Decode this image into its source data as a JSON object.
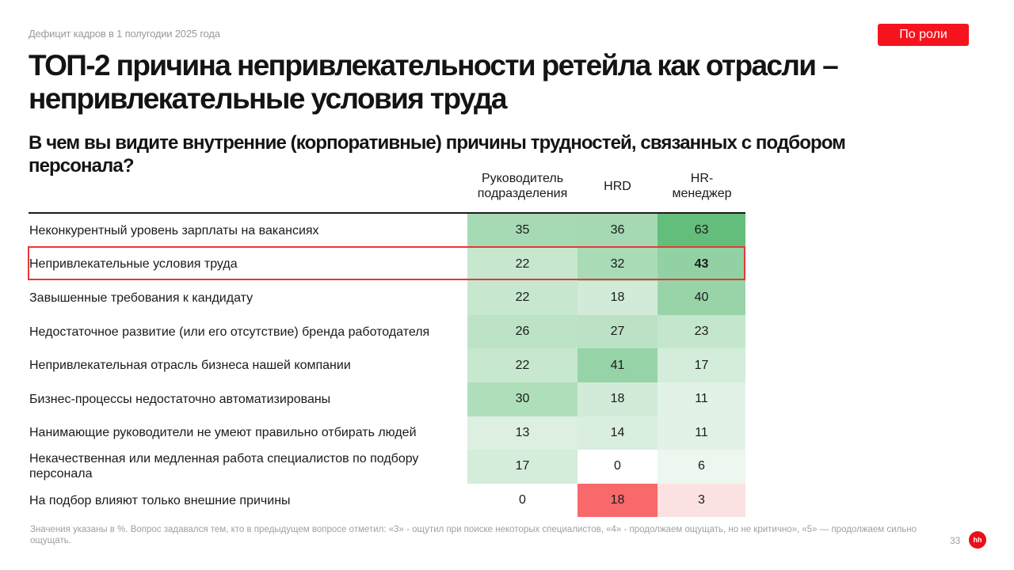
{
  "header": {
    "kicker": "Дефицит кадров в 1 полугодии 2025 года",
    "tag_button": "По роли",
    "title": "ТОП-2 причина непривлекательности ретейла как отрасли – непривлекательные условия труда",
    "question": "В чем вы видите внутренние (корпоративные) причины трудностей, связанных с подбором персонала?"
  },
  "table": {
    "columns": [
      "Руководитель подразделения",
      "HRD",
      "HR-менеджер"
    ],
    "highlighted_row": 1,
    "rows": [
      {
        "label": "Неконкурентный уровень зарплаты на вакансиях",
        "values": [
          "35",
          "36",
          "63"
        ],
        "colors": [
          "#a6dab4",
          "#a5d9b3",
          "#63be7b"
        ]
      },
      {
        "label": "Непривлекательные условия труда",
        "values": [
          "22",
          "32",
          "43"
        ],
        "colors": [
          "#c7e7cf",
          "#a9dbb6",
          "#92d1a3"
        ],
        "bold": [
          false,
          false,
          true
        ]
      },
      {
        "label": "Завышенные требования к кандидату",
        "values": [
          "22",
          "18",
          "40"
        ],
        "colors": [
          "#c7e7cf",
          "#d1ebd8",
          "#99d4a9"
        ]
      },
      {
        "label": "Недостаточное развитие (или его отсутствие) бренда работодателя",
        "values": [
          "26",
          "27",
          "23"
        ],
        "colors": [
          "#bde3c6",
          "#bbe2c5",
          "#c4e6cd"
        ]
      },
      {
        "label": "Непривлекательная отрасль бизнеса нашей компании",
        "values": [
          "22",
          "41",
          "17"
        ],
        "colors": [
          "#c7e7cf",
          "#96d3a7",
          "#d4ecda"
        ]
      },
      {
        "label": "Бизнес-процессы недостаточно автоматизированы",
        "values": [
          "30",
          "18",
          "11"
        ],
        "colors": [
          "#afdebb",
          "#d1ebd8",
          "#e2f2e6"
        ]
      },
      {
        "label": "Нанимающие руководители не умеют правильно отбирать людей",
        "values": [
          "13",
          "14",
          "11"
        ],
        "colors": [
          "#dcefe1",
          "#daeedf",
          "#e2f2e6"
        ]
      },
      {
        "label": "Некачественная или медленная работа специалистов по подбору персонала",
        "values": [
          "17",
          "0",
          "6"
        ],
        "colors": [
          "#d4ecda",
          "#ffffff",
          "#edf6ef"
        ]
      },
      {
        "label": "На подбор влияют только внешние причины",
        "values": [
          "0",
          "18",
          "3"
        ],
        "colors": [
          "#ffffff",
          "#f8696b",
          "#fce1e3"
        ]
      }
    ]
  },
  "footer": {
    "note": "Значения указаны в %. Вопрос задавался тем, кто в предыдущем вопросе отметил: «3» - ощутил при поиске некоторых специалистов, «4» - продолжаем ощущать, но не критично», «5» — продолжаем сильно ощущать.",
    "page_number": "33",
    "logo": "hh"
  }
}
